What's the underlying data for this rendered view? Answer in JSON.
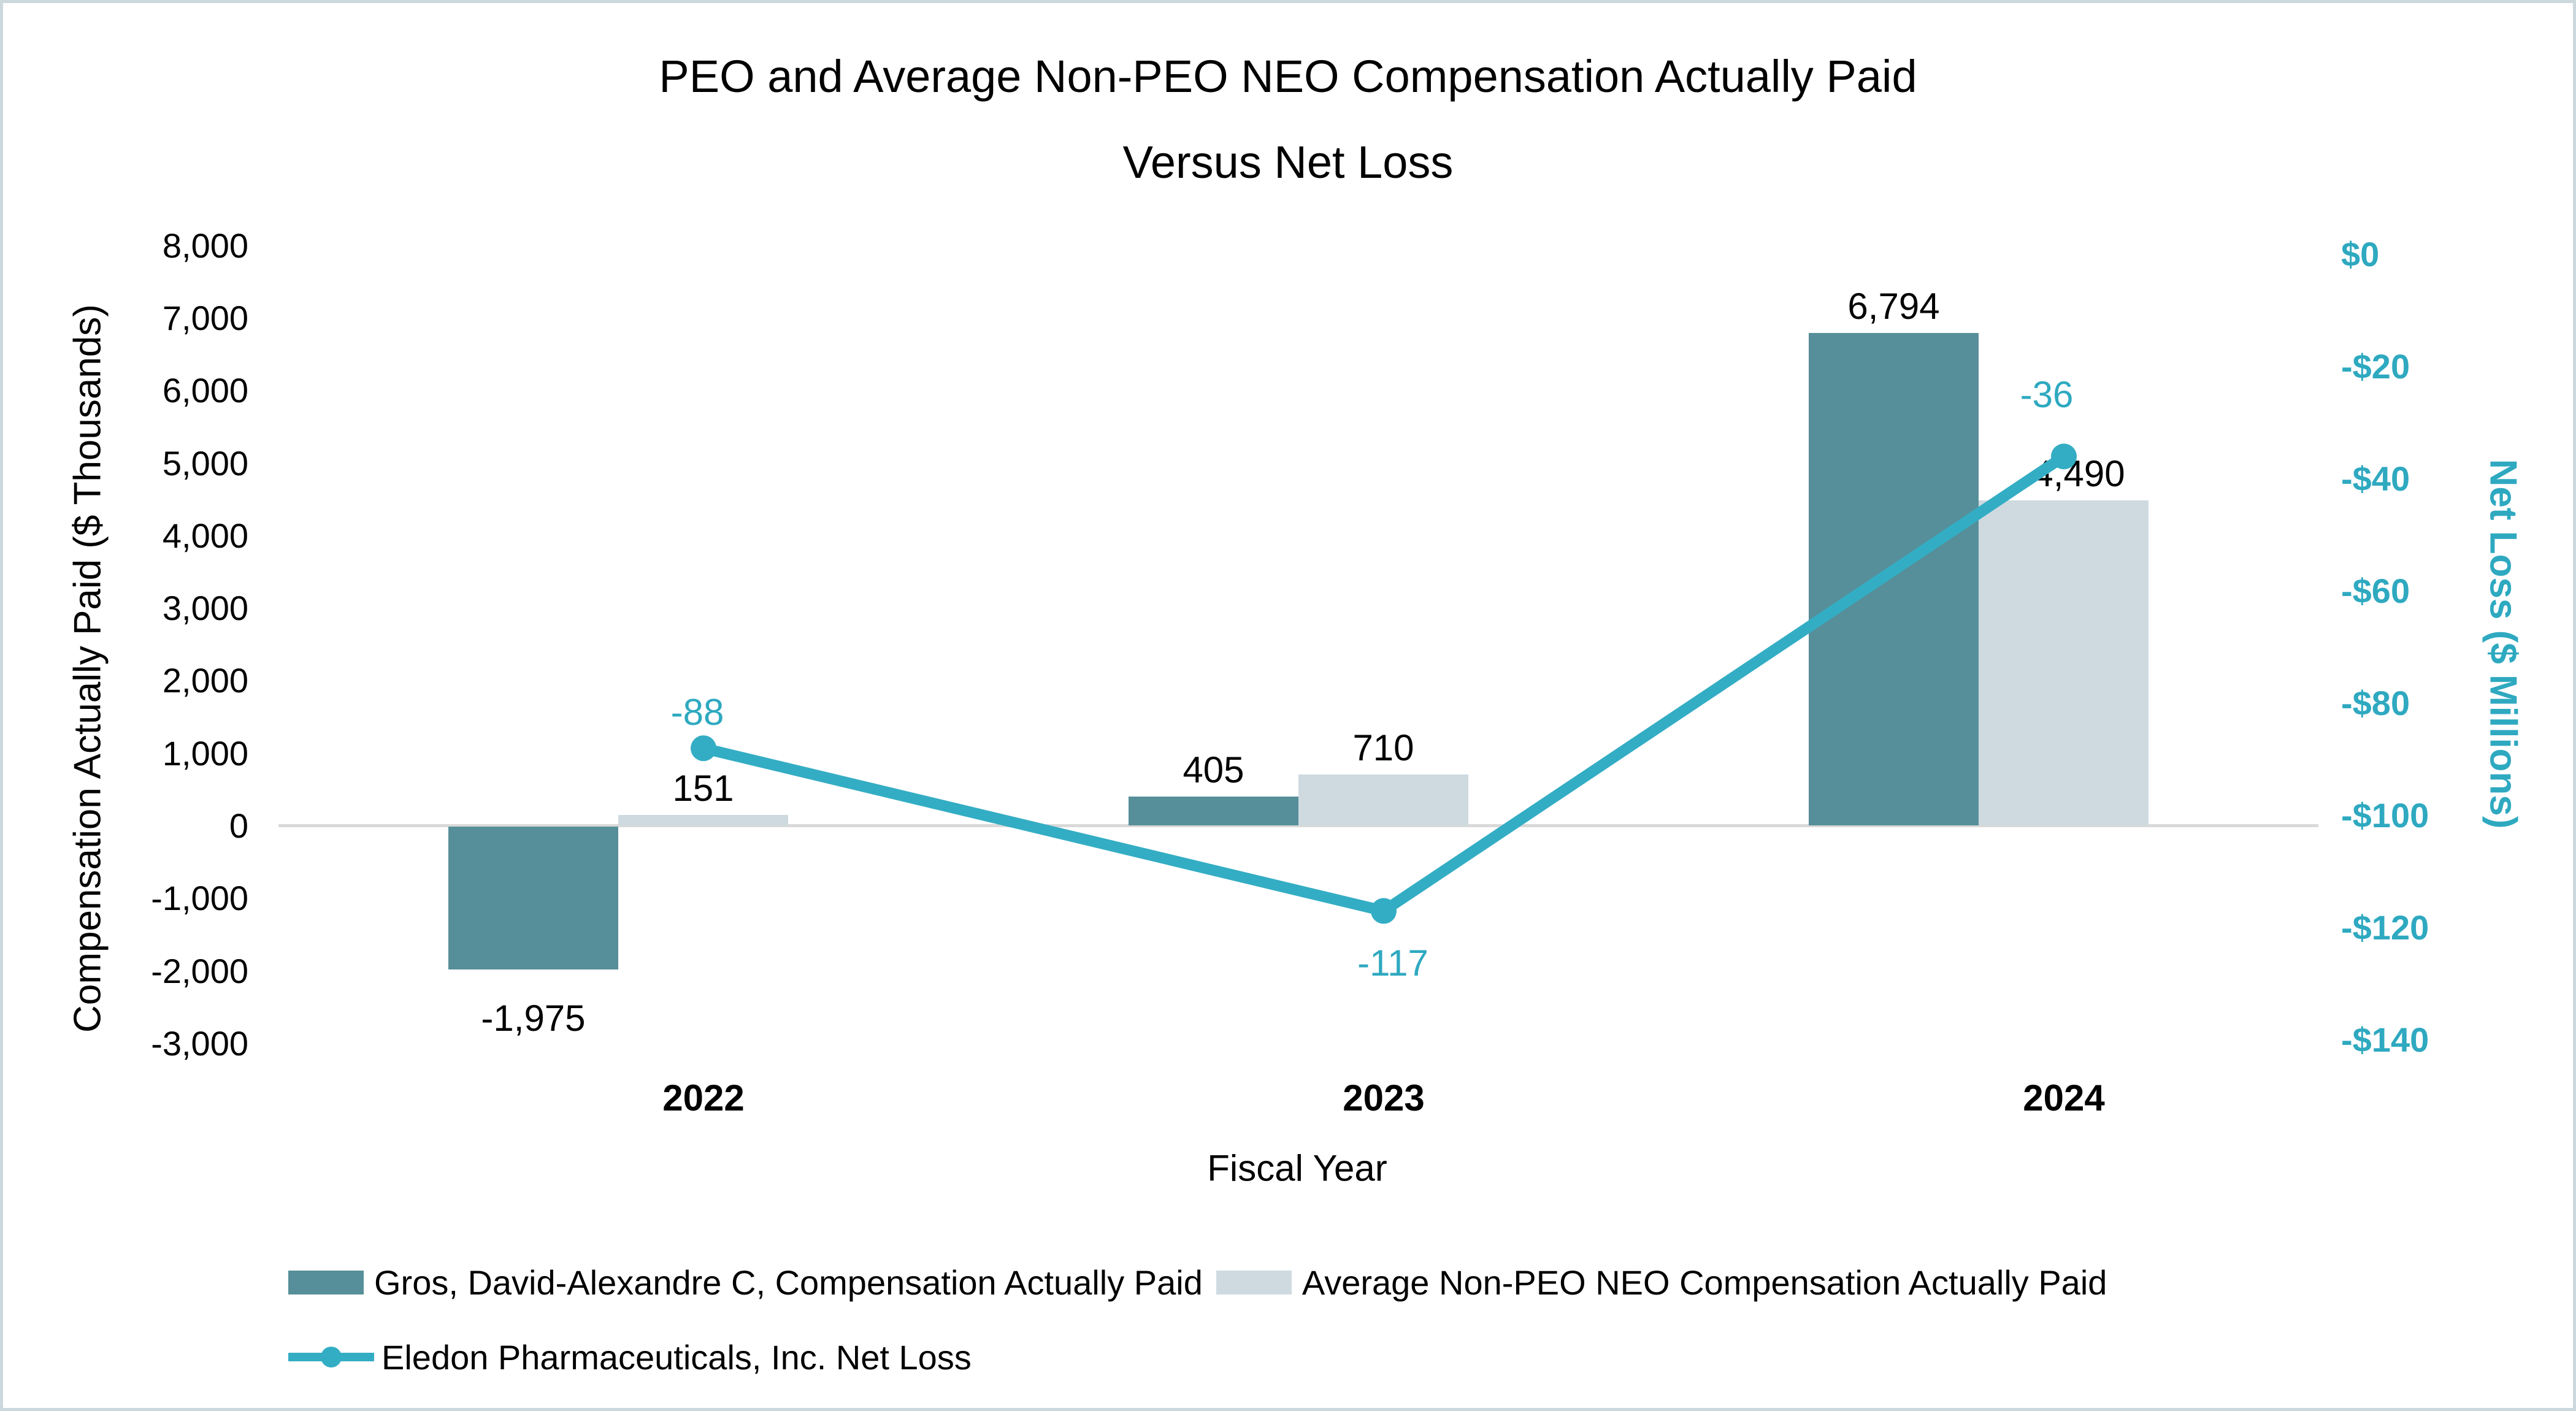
{
  "page": {
    "background": "#FFFFFF",
    "border_color": "#CDD8DC"
  },
  "chart_data": {
    "type": "combo-bar-line",
    "title_line1": "PEO and Average Non-PEO NEO Compensation Actually Paid",
    "title_line2": "Versus Net Loss",
    "xlabel": "Fiscal Year",
    "categories": [
      "2022",
      "2023",
      "2024"
    ],
    "left_axis": {
      "label": "Compensation Actually Paid ($ Thousands)",
      "tick_values": [
        8000,
        7000,
        6000,
        5000,
        4000,
        3000,
        2000,
        1000,
        0,
        -1000,
        -2000,
        -3000
      ],
      "tick_labels": [
        "8,000",
        "7,000",
        "6,000",
        "5,000",
        "4,000",
        "3,000",
        "2,000",
        "1,000",
        "0",
        "-1,000",
        "-2,000",
        "-3,000"
      ],
      "range": [
        -3000,
        8000
      ]
    },
    "right_axis": {
      "label": "Net Loss ($ Millions)",
      "tick_values": [
        0,
        -20,
        -40,
        -60,
        -80,
        -100,
        -120,
        -140
      ],
      "tick_labels": [
        "$0",
        "-$20",
        "-$40",
        "-$60",
        "-$80",
        "-$100",
        "-$120",
        "-$140"
      ],
      "range": [
        -140,
        0
      ]
    },
    "series": [
      {
        "name": "Gros, David-Alexandre C,  Compensation Actually Paid",
        "key": "peo",
        "type": "bar",
        "axis": "left",
        "color": "#568F99",
        "values": [
          -1975,
          405,
          6794
        ],
        "value_labels": [
          "-1,975",
          "405",
          "6,794"
        ]
      },
      {
        "name": "Average Non-PEO NEO Compensation Actually Paid",
        "key": "non-peo",
        "type": "bar",
        "axis": "left",
        "color": "#CEDAE0",
        "values": [
          151,
          710,
          4490
        ],
        "value_labels": [
          "151",
          "710",
          "4,490"
        ]
      },
      {
        "name": "Eledon Pharmaceuticals, Inc. Net Loss",
        "key": "net-loss",
        "type": "line",
        "axis": "right",
        "color": "#33ADC4",
        "values": [
          -88,
          -117,
          -36
        ],
        "value_labels": [
          "-88",
          "-117",
          "-36"
        ]
      }
    ],
    "colors": {
      "baseline": "#D9D9D9",
      "right_axis_text": "#2EA9C0",
      "text": "#000000"
    },
    "legend_position": "bottom-left",
    "grid": "none"
  }
}
